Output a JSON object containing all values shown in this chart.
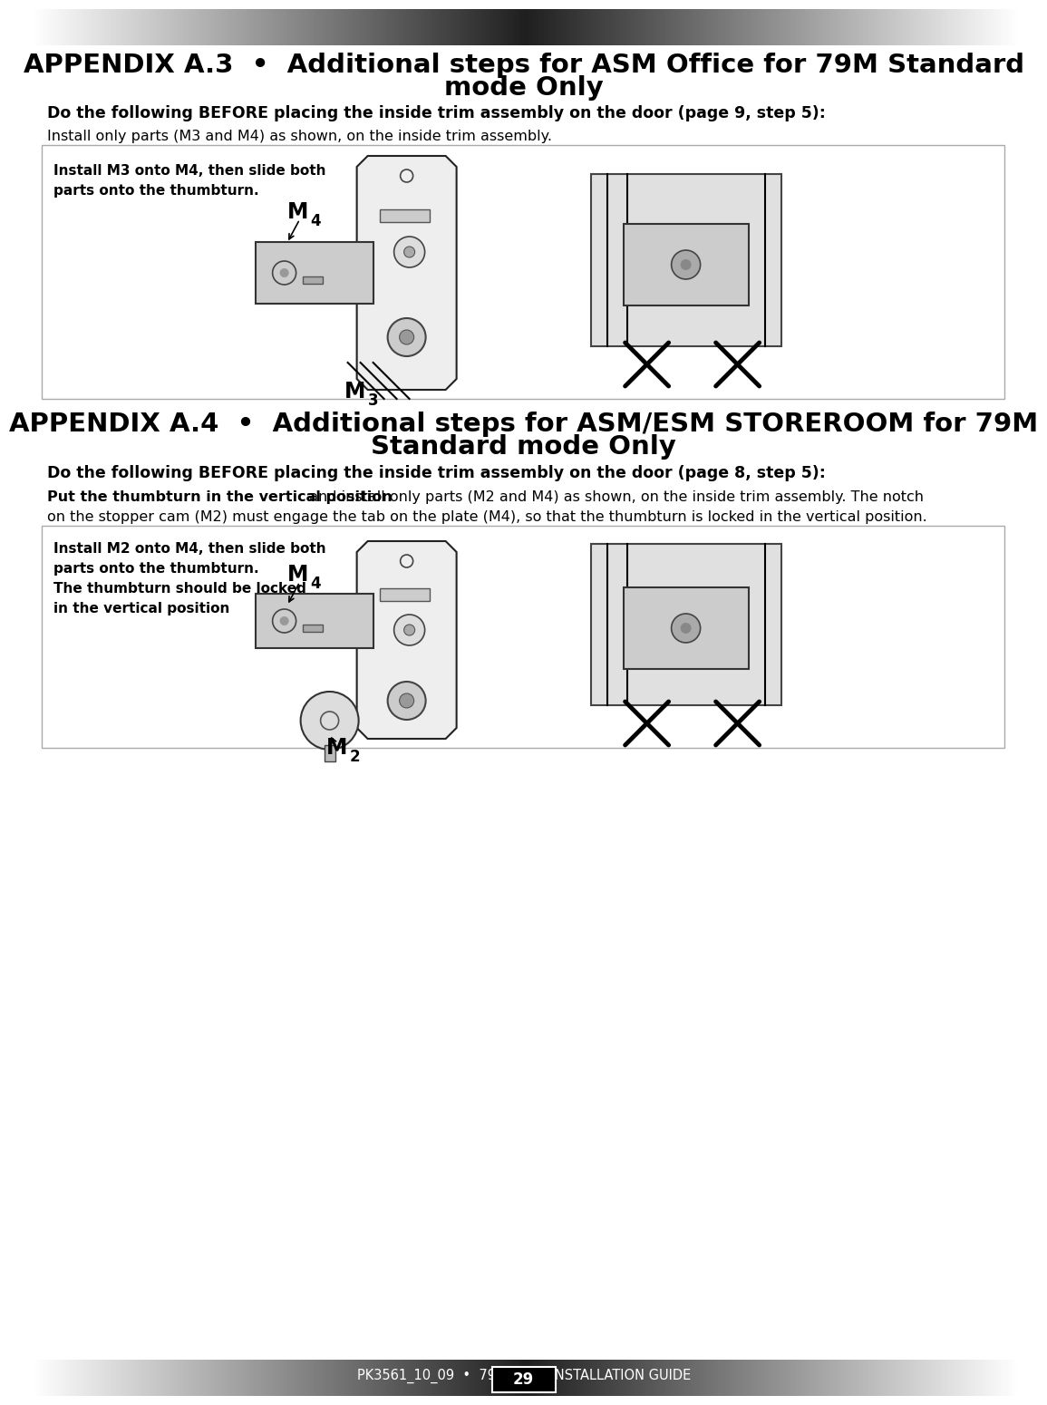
{
  "page_bg": "#ffffff",
  "title_a3_line1": "APPENDIX A.3  •  Additional steps for ASM Office for 79M Standard",
  "title_a3_line2": "mode Only",
  "title_a4_line1": "APPENDIX A.4  •  Additional steps for ASM/ESM STOREROOM for 79M",
  "title_a4_line2": "Standard mode Only",
  "subtitle_a3": "Do the following BEFORE placing the inside trim assembly on the door (page 9, step 5):",
  "subtitle_a4": "Do the following BEFORE placing the inside trim assembly on the door (page 8, step 5):",
  "body_a3": "Install only parts (M3 and M4) as shown, on the inside trim assembly.",
  "body_a4_bold": "Put the thumbturn in the vertical position",
  "body_a4_rest": " and install only parts (M2 and M4) as shown, on the inside trim assembly. The notch",
  "body_a4_line2": "on the stopper cam (M2) must engage the tab on the plate (M4), so that the thumbturn is locked in the vertical position.",
  "note_a3_line1": "Install M3 onto M4, then slide both",
  "note_a3_line2": "parts onto the thumbturn.",
  "note_a4_line1": "Install M2 onto M4, then slide both",
  "note_a4_line2": "parts onto the thumbturn.",
  "note_a4_line3": "The thumbturn should be locked",
  "note_a4_line4": "in the vertical position",
  "footer_text": "PK3561_10_09  •  79 SERIES INSTALLATION GUIDE",
  "page_number": "29",
  "box_border": "#aaaaaa",
  "text_dark": "#000000"
}
